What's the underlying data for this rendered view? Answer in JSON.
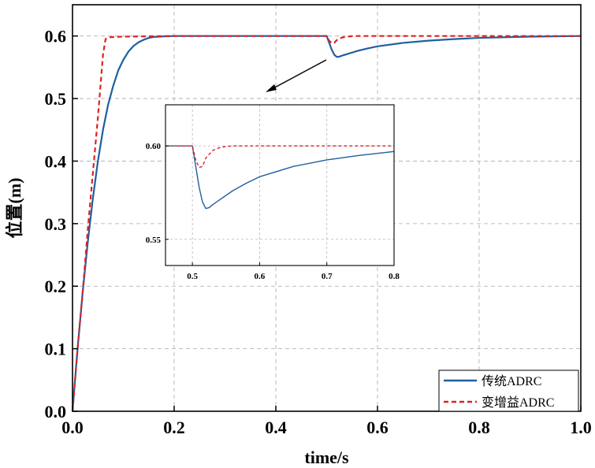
{
  "chart_data": {
    "type": "line",
    "title": "",
    "xlabel": "time/s",
    "ylabel": "位置(m)",
    "xlim": [
      0,
      1.0
    ],
    "ylim": [
      0,
      0.65
    ],
    "x_ticks": [
      "0.0",
      "0.2",
      "0.4",
      "0.6",
      "0.8",
      "1.0"
    ],
    "y_ticks": [
      "0.0",
      "0.1",
      "0.2",
      "0.3",
      "0.4",
      "0.5",
      "0.6"
    ],
    "grid": true,
    "legend_position": "bottom-right",
    "series": [
      {
        "name": "传统ADRC",
        "color": "#1f5fa0",
        "style": "solid",
        "x": [
          0,
          0.005,
          0.01,
          0.02,
          0.03,
          0.04,
          0.05,
          0.06,
          0.07,
          0.08,
          0.09,
          0.1,
          0.11,
          0.12,
          0.13,
          0.14,
          0.15,
          0.16,
          0.18,
          0.2,
          0.25,
          0.3,
          0.4,
          0.5,
          0.505,
          0.51,
          0.515,
          0.52,
          0.525,
          0.53,
          0.54,
          0.56,
          0.58,
          0.6,
          0.65,
          0.7,
          0.75,
          0.8,
          0.9,
          1.0
        ],
        "y": [
          0,
          0.05,
          0.1,
          0.19,
          0.27,
          0.34,
          0.4,
          0.45,
          0.49,
          0.52,
          0.545,
          0.562,
          0.575,
          0.584,
          0.59,
          0.594,
          0.597,
          0.5985,
          0.5995,
          0.6,
          0.6,
          0.6,
          0.6,
          0.6,
          0.589,
          0.578,
          0.57,
          0.5665,
          0.567,
          0.5685,
          0.571,
          0.576,
          0.58,
          0.5835,
          0.589,
          0.5925,
          0.595,
          0.597,
          0.599,
          0.6
        ]
      },
      {
        "name": "变增益ADRC",
        "color": "#dd2222",
        "style": "dashed",
        "x": [
          0,
          0.01,
          0.02,
          0.03,
          0.04,
          0.05,
          0.055,
          0.06,
          0.065,
          0.07,
          0.1,
          0.2,
          0.3,
          0.4,
          0.5,
          0.505,
          0.51,
          0.515,
          0.52,
          0.53,
          0.54,
          0.55,
          0.56,
          0.6,
          0.7,
          0.8,
          0.9,
          1.0
        ],
        "y": [
          0,
          0.1,
          0.19,
          0.29,
          0.38,
          0.47,
          0.52,
          0.57,
          0.595,
          0.598,
          0.599,
          0.6,
          0.6,
          0.6,
          0.6,
          0.5925,
          0.5885,
          0.589,
          0.5935,
          0.5975,
          0.599,
          0.5997,
          0.6,
          0.6,
          0.6,
          0.6,
          0.6,
          0.6
        ]
      }
    ],
    "inset": {
      "xlim": [
        0.46,
        0.8
      ],
      "ylim": [
        0.536,
        0.622
      ],
      "x_ticks": [
        "0.5",
        "0.6",
        "0.7",
        "0.8"
      ],
      "y_ticks": [
        "0.60",
        "0.55"
      ]
    }
  }
}
